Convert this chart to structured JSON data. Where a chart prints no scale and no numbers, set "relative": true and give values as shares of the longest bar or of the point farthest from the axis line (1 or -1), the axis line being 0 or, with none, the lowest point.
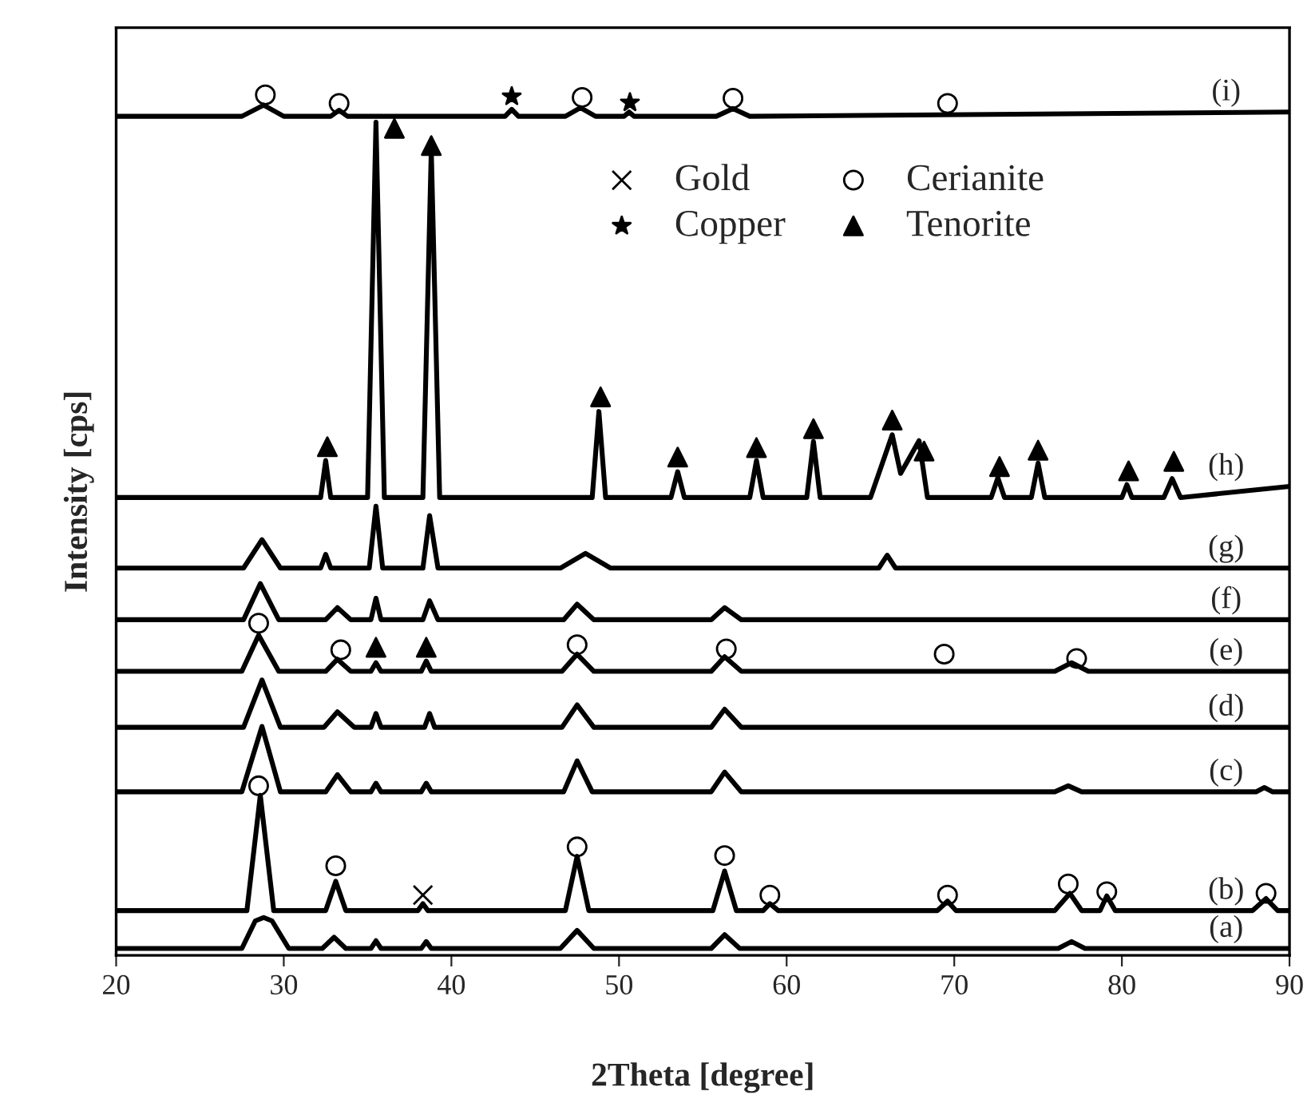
{
  "chart_data": {
    "type": "line",
    "relative": true,
    "xlabel": "2Theta [degree]",
    "ylabel": "Intensity [cps]",
    "xlim": [
      20,
      90
    ],
    "xticks": [
      20,
      30,
      40,
      50,
      60,
      70,
      80,
      90
    ],
    "grid": false,
    "legend": "top right",
    "line_style": "solid",
    "series": [
      {
        "name": "(a)",
        "color": "#000000",
        "x": [
          20,
          27.5,
          28.3,
          28.8,
          29.3,
          30.3,
          32.3,
          33,
          33.7,
          35.2,
          35.5,
          35.8,
          38.2,
          38.5,
          38.8,
          46.5,
          47.5,
          48.5,
          55.5,
          56.3,
          57.2,
          76.2,
          77,
          77.8,
          90
        ],
        "values": [
          0.008,
          0.008,
          0.04,
          0.044,
          0.04,
          0.008,
          0.008,
          0.021,
          0.008,
          0.008,
          0.017,
          0.008,
          0.008,
          0.016,
          0.008,
          0.008,
          0.029,
          0.008,
          0.008,
          0.024,
          0.008,
          0.008,
          0.016,
          0.008,
          0.008
        ]
      },
      {
        "name": "(b)",
        "color": "#000000",
        "x": [
          20,
          27.8,
          28.6,
          29.4,
          32.5,
          33.1,
          33.7,
          38,
          38.3,
          38.6,
          46.8,
          47.5,
          48.2,
          55.6,
          56.3,
          57,
          58.6,
          59,
          59.5,
          69,
          69.6,
          70.1,
          76,
          76.9,
          77.6,
          78.7,
          79.1,
          79.6,
          87.8,
          88.6,
          89.3,
          90
        ],
        "values": [
          0.052,
          0.052,
          0.186,
          0.052,
          0.052,
          0.086,
          0.052,
          0.052,
          0.06,
          0.052,
          0.052,
          0.115,
          0.052,
          0.052,
          0.098,
          0.052,
          0.052,
          0.06,
          0.052,
          0.052,
          0.063,
          0.052,
          0.052,
          0.072,
          0.052,
          0.052,
          0.069,
          0.052,
          0.052,
          0.066,
          0.052,
          0.052
        ]
      },
      {
        "name": "(c)",
        "color": "#000000",
        "x": [
          20,
          27.5,
          28.7,
          29.8,
          32.5,
          33.2,
          34,
          35.2,
          35.5,
          35.8,
          38.2,
          38.5,
          38.8,
          46.7,
          47.5,
          48.4,
          55.5,
          56.3,
          57.3,
          76,
          76.8,
          77.6,
          88,
          88.5,
          89,
          90
        ],
        "values": [
          0.19,
          0.19,
          0.266,
          0.19,
          0.19,
          0.21,
          0.19,
          0.19,
          0.2,
          0.19,
          0.19,
          0.2,
          0.19,
          0.19,
          0.226,
          0.19,
          0.19,
          0.213,
          0.19,
          0.19,
          0.197,
          0.19,
          0.19,
          0.195,
          0.19,
          0.19
        ]
      },
      {
        "name": "(d)",
        "color": "#000000",
        "x": [
          20,
          27.6,
          28.7,
          29.8,
          32.4,
          33.2,
          34.2,
          35.2,
          35.5,
          35.8,
          38.4,
          38.7,
          39,
          46.6,
          47.5,
          48.5,
          55.5,
          56.3,
          57.3,
          90
        ],
        "values": [
          0.265,
          0.265,
          0.32,
          0.265,
          0.265,
          0.283,
          0.265,
          0.265,
          0.281,
          0.265,
          0.265,
          0.281,
          0.265,
          0.265,
          0.291,
          0.265,
          0.265,
          0.286,
          0.265,
          0.265
        ]
      },
      {
        "name": "(e)",
        "color": "#000000",
        "x": [
          20,
          27.5,
          28.5,
          29.7,
          32.5,
          33.2,
          34,
          35.2,
          35.5,
          35.8,
          38.2,
          38.5,
          38.8,
          46.6,
          47.5,
          48.5,
          55.5,
          56.3,
          57.3,
          76,
          77,
          78,
          90
        ],
        "values": [
          0.33,
          0.33,
          0.372,
          0.33,
          0.33,
          0.344,
          0.33,
          0.33,
          0.34,
          0.33,
          0.33,
          0.342,
          0.33,
          0.33,
          0.35,
          0.33,
          0.33,
          0.347,
          0.33,
          0.33,
          0.34,
          0.33,
          0.33
        ]
      },
      {
        "name": "(f)",
        "color": "#000000",
        "x": [
          20,
          27.6,
          28.6,
          29.7,
          32.5,
          33.2,
          34,
          35.2,
          35.5,
          35.8,
          38.3,
          38.7,
          39.2,
          46.7,
          47.5,
          48.5,
          55.5,
          56.3,
          57.3,
          90
        ],
        "values": [
          0.39,
          0.39,
          0.432,
          0.39,
          0.39,
          0.404,
          0.39,
          0.39,
          0.415,
          0.39,
          0.39,
          0.412,
          0.39,
          0.39,
          0.408,
          0.39,
          0.39,
          0.404,
          0.39,
          0.39
        ]
      },
      {
        "name": "(g)",
        "color": "#000000",
        "x": [
          20,
          27.6,
          28.7,
          29.8,
          32.2,
          32.5,
          32.8,
          35.1,
          35.5,
          35.9,
          38.3,
          38.7,
          39.2,
          46.5,
          48,
          49.5,
          65.5,
          66,
          66.5,
          90
        ],
        "values": [
          0.45,
          0.45,
          0.483,
          0.45,
          0.45,
          0.466,
          0.45,
          0.45,
          0.522,
          0.45,
          0.45,
          0.511,
          0.45,
          0.45,
          0.467,
          0.45,
          0.45,
          0.465,
          0.45,
          0.45
        ]
      },
      {
        "name": "(h)",
        "color": "#000000",
        "x": [
          20,
          32.2,
          32.5,
          32.8,
          35,
          35.5,
          36,
          38.3,
          38.8,
          39.3,
          48.4,
          48.8,
          49.2,
          53.1,
          53.5,
          53.9,
          57.8,
          58.2,
          58.6,
          61.2,
          61.6,
          62,
          65,
          65.5,
          66.3,
          66.8,
          67.9,
          68.4,
          72.2,
          72.6,
          73,
          74.6,
          75,
          75.4,
          80,
          80.3,
          80.6,
          82.5,
          83,
          83.5,
          90
        ],
        "values": [
          0.532,
          0.532,
          0.575,
          0.532,
          0.532,
          0.968,
          0.532,
          0.532,
          0.936,
          0.532,
          0.532,
          0.632,
          0.532,
          0.532,
          0.562,
          0.532,
          0.532,
          0.575,
          0.532,
          0.532,
          0.597,
          0.532,
          0.532,
          0.56,
          0.605,
          0.56,
          0.598,
          0.532,
          0.532,
          0.555,
          0.532,
          0.532,
          0.572,
          0.532,
          0.532,
          0.547,
          0.532,
          0.532,
          0.554,
          0.532,
          0.545
        ]
      },
      {
        "name": "(i)",
        "color": "#000000",
        "x": [
          20,
          27.5,
          28.8,
          30,
          32.8,
          33.3,
          33.8,
          43.2,
          43.6,
          44,
          46.8,
          47.7,
          48.6,
          50.3,
          50.6,
          50.9,
          55.8,
          56.8,
          57.8,
          90
        ],
        "values": [
          0.975,
          0.975,
          0.988,
          0.975,
          0.975,
          0.982,
          0.975,
          0.975,
          0.983,
          0.975,
          0.975,
          0.985,
          0.975,
          0.975,
          0.98,
          0.975,
          0.975,
          0.984,
          0.975,
          0.98
        ]
      },
      {
        "type": "scatter",
        "name": "Gold",
        "marker": "cross",
        "color": "#000000",
        "x": [
          38.3
        ],
        "values": [
          0.07
        ]
      },
      {
        "type": "scatter",
        "name": "Copper",
        "marker": "star",
        "color": "#000000",
        "x": [
          43.6,
          50.65
        ],
        "values": [
          0.998,
          0.991
        ]
      },
      {
        "type": "scatter",
        "name": "Cerianite",
        "marker": "circle",
        "color": "#000000",
        "x": [
          28.9,
          33.3,
          47.8,
          56.8,
          69.6,
          28.5,
          33.4,
          47.5,
          56.4,
          69.4,
          77.3,
          28.5,
          33.1,
          47.5,
          56.3,
          59.0,
          69.6,
          76.8,
          79.1,
          88.6
        ],
        "values": [
          1.0,
          0.99,
          0.997,
          0.996,
          0.99,
          0.386,
          0.355,
          0.361,
          0.356,
          0.35,
          0.345,
          0.197,
          0.104,
          0.126,
          0.116,
          0.07,
          0.07,
          0.083,
          0.074,
          0.072
        ]
      },
      {
        "type": "scatter",
        "name": "Tenorite",
        "marker": "triangle",
        "color": "#000000",
        "x": [
          32.6,
          36.6,
          38.8,
          48.9,
          53.5,
          58.2,
          61.6,
          66.3,
          68.2,
          72.7,
          75,
          80.4,
          83.1,
          35.5,
          38.5
        ],
        "values": [
          0.591,
          0.961,
          0.941,
          0.649,
          0.579,
          0.59,
          0.612,
          0.622,
          0.586,
          0.568,
          0.587,
          0.563,
          0.574,
          0.358,
          0.358
        ]
      }
    ]
  }
}
